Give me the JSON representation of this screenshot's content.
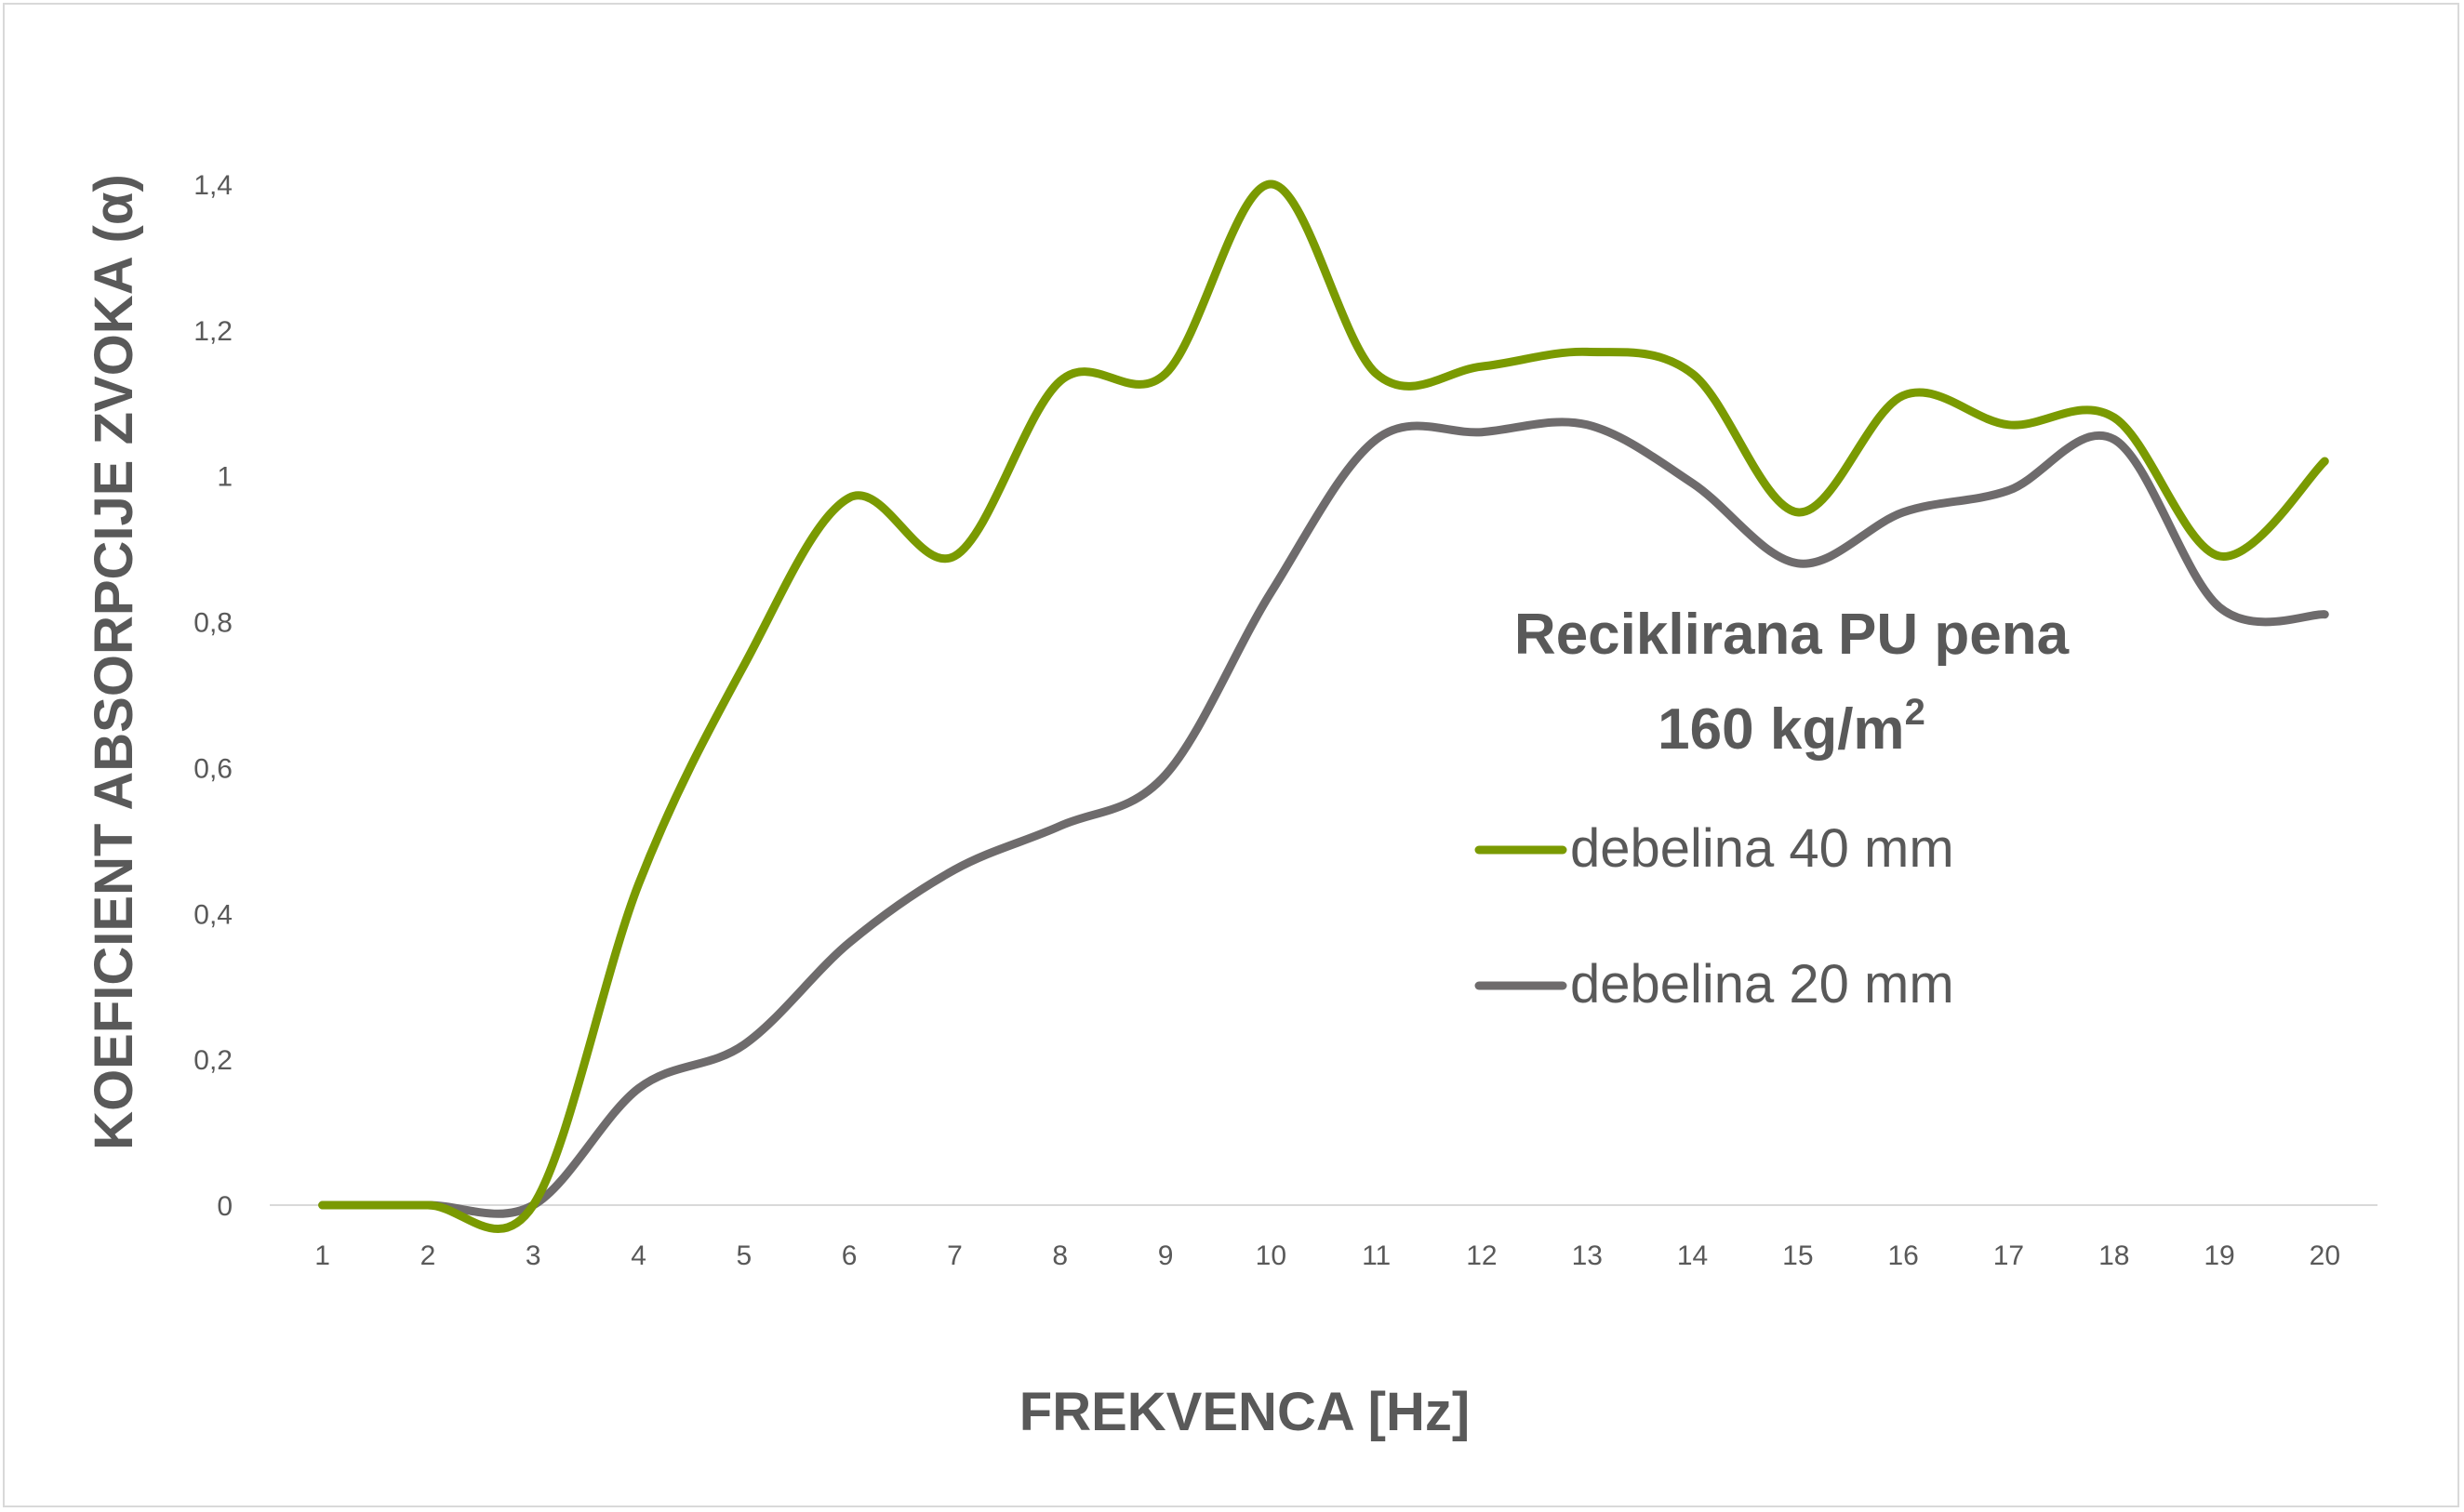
{
  "chart_data": {
    "type": "line",
    "title": "",
    "xlabel": "FREKVENCA [Hz]",
    "ylabel": "KOEFICIENT ABSORPCIJE ZVOKA (α)",
    "categories": [
      "1",
      "2",
      "3",
      "4",
      "5",
      "6",
      "7",
      "8",
      "9",
      "10",
      "11",
      "12",
      "13",
      "14",
      "15",
      "16",
      "17",
      "18",
      "19",
      "20"
    ],
    "y_ticks": [
      "0",
      "0,2",
      "0,4",
      "0,6",
      "0,8",
      "1",
      "1,2",
      "1,4"
    ],
    "ylim": [
      0,
      1.4
    ],
    "grid": false,
    "smooth": true,
    "series": [
      {
        "name": "debelina 40 mm",
        "color": "#7a9a01",
        "values": [
          0,
          0,
          0,
          0.44,
          0.74,
          0.97,
          0.89,
          1.13,
          1.14,
          1.4,
          1.14,
          1.15,
          1.17,
          1.14,
          0.95,
          1.11,
          1.07,
          1.08,
          0.89,
          1.02
        ]
      },
      {
        "name": "debelina 20 mm",
        "color": "#6e6b6c",
        "values": [
          0,
          0,
          0,
          0.16,
          0.22,
          0.36,
          0.46,
          0.52,
          0.59,
          0.84,
          1.05,
          1.06,
          1.07,
          0.99,
          0.88,
          0.95,
          0.98,
          1.05,
          0.82,
          0.81
        ]
      }
    ],
    "annotation": {
      "line1": "Reciklirana PU pena",
      "line2_main": "160 kg/m",
      "line2_sup": "2"
    },
    "legend_position": "right"
  }
}
